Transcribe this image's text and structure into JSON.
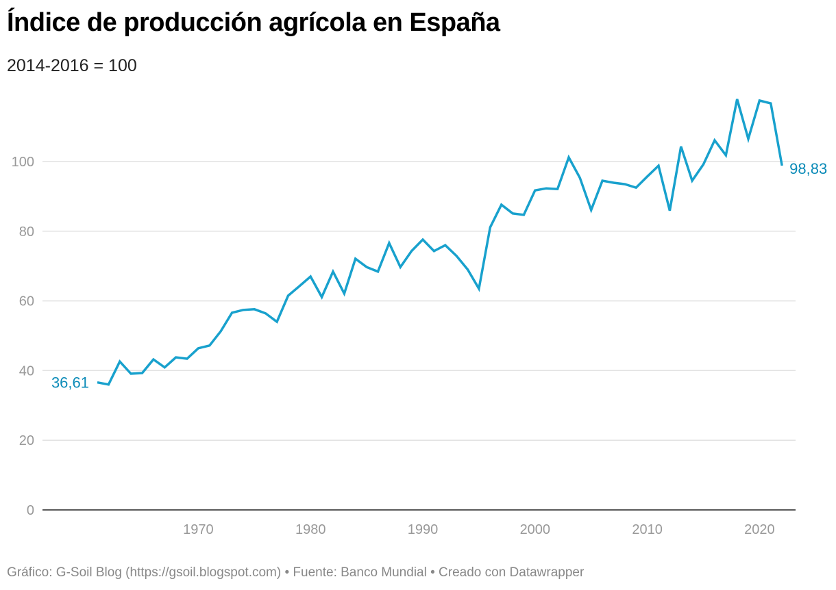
{
  "title": "Índice de producción agrícola en España",
  "subtitle": "2014-2016 = 100",
  "footer": "Gráfico: G-Soil Blog (https://gsoil.blogspot.com) • Fuente: Banco Mundial • Creado con Datawrapper",
  "chart_data": {
    "type": "line",
    "title": "Índice de producción agrícola en España",
    "subtitle": "2014-2016 = 100",
    "xlabel": "",
    "ylabel": "",
    "xlim": [
      1961,
      2022
    ],
    "ylim": [
      0,
      120
    ],
    "yticks": [
      0,
      20,
      40,
      60,
      80,
      100
    ],
    "xticks": [
      1970,
      1980,
      1990,
      2000,
      2010,
      2020
    ],
    "grid": true,
    "line_color": "#18a1cd",
    "label_color": "#0b8bb8",
    "start_label": "36,61",
    "end_label": "98,83",
    "x": [
      1961,
      1962,
      1963,
      1964,
      1965,
      1966,
      1967,
      1968,
      1969,
      1970,
      1971,
      1972,
      1973,
      1974,
      1975,
      1976,
      1977,
      1978,
      1979,
      1980,
      1981,
      1982,
      1983,
      1984,
      1985,
      1986,
      1987,
      1988,
      1989,
      1990,
      1991,
      1992,
      1993,
      1994,
      1995,
      1996,
      1997,
      1998,
      1999,
      2000,
      2001,
      2002,
      2003,
      2004,
      2005,
      2006,
      2007,
      2008,
      2009,
      2010,
      2011,
      2012,
      2013,
      2014,
      2015,
      2016,
      2017,
      2018,
      2019,
      2020,
      2021,
      2022
    ],
    "values": [
      36.61,
      36.0,
      42.6,
      39.1,
      39.3,
      43.2,
      40.9,
      43.8,
      43.4,
      46.4,
      47.2,
      51.3,
      56.6,
      57.4,
      57.6,
      56.4,
      54.0,
      61.5,
      64.2,
      67.0,
      61.1,
      68.4,
      62.1,
      72.1,
      69.7,
      68.4,
      76.6,
      69.7,
      74.3,
      77.6,
      74.3,
      76.0,
      72.9,
      69.0,
      63.5,
      81.1,
      87.6,
      85.1,
      84.7,
      91.7,
      92.3,
      92.1,
      101.2,
      95.3,
      86.1,
      94.5,
      93.9,
      93.5,
      92.5,
      95.7,
      98.8,
      85.9,
      104.3,
      94.5,
      99.2,
      106.1,
      101.8,
      117.9,
      106.5,
      117.5,
      116.7,
      98.83
    ]
  }
}
